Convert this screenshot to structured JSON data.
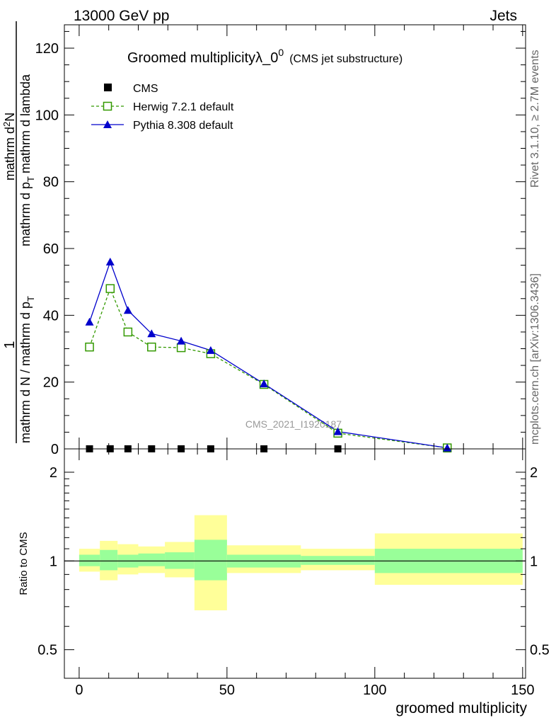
{
  "header": {
    "left": "13000 GeV pp",
    "right": "Jets"
  },
  "side_labels": {
    "rivet": "Rivet 3.1.10, ≥ 2.7M events",
    "mcplots": "mcplots.cern.ch [arXiv:1306.3436]"
  },
  "watermark": "CMS_2021_I1920187",
  "colors": {
    "cms": "#000000",
    "herwig": "#339900",
    "pythia": "#0000cc",
    "band_inner": "#99ff99",
    "band_outer": "#ffff99"
  },
  "chart_data": [
    {
      "type": "line",
      "title": "Groomed multiplicityλ_0",
      "title_sup": "0",
      "title_suffix": "(CMS jet substructure)",
      "ylabel_fraction_num": "1",
      "ylabel_fraction_den": "mathrm d N / mathrm d p",
      "ylabel_fraction_den_sub": "T",
      "ylabel_main_num": "mathrm d",
      "ylabel_main_num_sup": "2",
      "ylabel_main_num_tail": "N",
      "ylabel_main_den": "mathrm d p",
      "ylabel_main_den_sub": "T",
      "ylabel_main_den_tail": "mathrm d lambda",
      "xlim": [
        -5,
        151
      ],
      "ylim": [
        0,
        127
      ],
      "yticks": [
        0,
        20,
        40,
        60,
        80,
        100,
        120
      ],
      "legend_position": "top-left",
      "series": [
        {
          "name": "CMS",
          "marker": "filled-square",
          "x": [
            3.5,
            10.5,
            16.5,
            24.5,
            34.5,
            44.5,
            62.5,
            87.5,
            124.5
          ],
          "y": [
            0.02,
            0.03,
            0.02,
            0.02,
            0.02,
            0.01,
            0.01,
            0.005,
            0.002
          ]
        },
        {
          "name": "Herwig 7.2.1 default",
          "marker": "open-square",
          "linestyle": "dashed",
          "x": [
            3.5,
            10.5,
            16.5,
            24.5,
            34.5,
            44.5,
            62.5,
            87.5,
            124.5
          ],
          "y": [
            30.5,
            48,
            35,
            30.5,
            30.3,
            28.5,
            19.3,
            4.7,
            0.3
          ]
        },
        {
          "name": "Pythia 8.308 default",
          "marker": "filled-triangle",
          "linestyle": "solid",
          "x": [
            3.5,
            10.5,
            16.5,
            24.5,
            34.5,
            44.5,
            62.5,
            87.5,
            124.5
          ],
          "y": [
            38,
            56,
            41.5,
            34.5,
            32.3,
            29.5,
            19.5,
            5.2,
            0.3
          ]
        }
      ]
    },
    {
      "type": "area",
      "ylabel": "Ratio to CMS",
      "xlabel": "groomed multiplicity",
      "xlim": [
        -5,
        151
      ],
      "ylim": [
        0.4,
        2.4
      ],
      "yscale": "log",
      "yticks": [
        0.5,
        1,
        2
      ],
      "xticks": [
        0,
        50,
        100,
        150
      ],
      "bins": [
        {
          "lo": 0,
          "hi": 7,
          "stat_lo": 0.96,
          "stat_hi": 1.05,
          "tot_lo": 0.92,
          "tot_hi": 1.1
        },
        {
          "lo": 7,
          "hi": 13,
          "stat_lo": 0.93,
          "stat_hi": 1.09,
          "tot_lo": 0.86,
          "tot_hi": 1.17
        },
        {
          "lo": 13,
          "hi": 20,
          "stat_lo": 0.95,
          "stat_hi": 1.05,
          "tot_lo": 0.9,
          "tot_hi": 1.14
        },
        {
          "lo": 20,
          "hi": 29,
          "stat_lo": 0.96,
          "stat_hi": 1.06,
          "tot_lo": 0.91,
          "tot_hi": 1.12
        },
        {
          "lo": 29,
          "hi": 39,
          "stat_lo": 0.94,
          "stat_hi": 1.07,
          "tot_lo": 0.88,
          "tot_hi": 1.16
        },
        {
          "lo": 39,
          "hi": 50,
          "stat_lo": 0.86,
          "stat_hi": 1.18,
          "tot_lo": 0.68,
          "tot_hi": 1.43
        },
        {
          "lo": 50,
          "hi": 75,
          "stat_lo": 0.95,
          "stat_hi": 1.05,
          "tot_lo": 0.91,
          "tot_hi": 1.13
        },
        {
          "lo": 75,
          "hi": 100,
          "stat_lo": 0.97,
          "stat_hi": 1.04,
          "tot_lo": 0.93,
          "tot_hi": 1.1
        },
        {
          "lo": 100,
          "hi": 150,
          "stat_lo": 0.91,
          "stat_hi": 1.1,
          "tot_lo": 0.83,
          "tot_hi": 1.24
        }
      ]
    }
  ]
}
